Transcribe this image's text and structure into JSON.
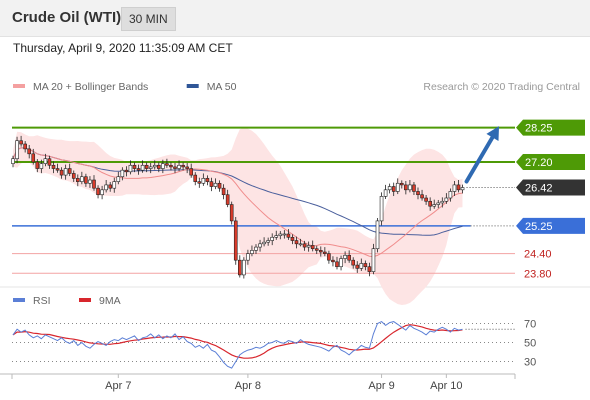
{
  "header": {
    "title": "Crude Oil (WTI)",
    "interval": "30 MIN"
  },
  "timestamp": "Thursday, April 9, 2020 11:35:09 AM CET",
  "copyright": "Research © 2020 Trading Central",
  "colors": {
    "resistance": "#4e9a06",
    "support": "#3a6fd8",
    "minor": "#f3a3a3",
    "minor_text": "#c0221f",
    "price_tag": "#333333",
    "bollinger_fill": "#fde4e4",
    "ma20": "#f08c8c",
    "ma50": "#4a5f9c",
    "candle_up": "#ffffff",
    "candle_down": "#d93b2b",
    "arrow": "#2f6ab2",
    "rsi": "#5b7fd6",
    "rsi_ma": "#d8262d"
  },
  "legends": {
    "main": [
      {
        "label": "MA 20 + Bollinger Bands",
        "color": "#f4a0a0"
      },
      {
        "label": "MA 50",
        "color": "#2f5697"
      }
    ],
    "rsi": [
      {
        "label": "RSI",
        "color": "#5b7fd6"
      },
      {
        "label": "9MA",
        "color": "#d8262d"
      }
    ]
  },
  "chart_data": {
    "type": "candlestick",
    "price_range": [
      23.35,
      28.85
    ],
    "price_labels": [
      {
        "value": 28.25,
        "label": "28.25",
        "kind": "resistance"
      },
      {
        "value": 27.2,
        "label": "27.20",
        "kind": "resistance"
      },
      {
        "value": 26.42,
        "label": "26.42",
        "kind": "last"
      },
      {
        "value": 25.25,
        "label": "25.25",
        "kind": "support"
      },
      {
        "value": 24.4,
        "label": "24.40",
        "kind": "minor"
      },
      {
        "value": 23.8,
        "label": "23.80",
        "kind": "minor"
      }
    ],
    "x_labels": [
      {
        "index": 26,
        "label": "Apr 7"
      },
      {
        "index": 58,
        "label": "Apr 8"
      },
      {
        "index": 91,
        "label": "Apr 9"
      },
      {
        "index": 107,
        "label": "Apr 10"
      }
    ],
    "bar_count": 112,
    "closes": [
      27.3,
      27.85,
      27.75,
      27.6,
      27.45,
      27.2,
      27.0,
      27.15,
      27.3,
      27.1,
      27.0,
      26.95,
      26.8,
      27.0,
      26.85,
      26.7,
      26.6,
      26.75,
      26.55,
      26.65,
      26.4,
      26.2,
      26.35,
      26.5,
      26.4,
      26.6,
      26.75,
      26.95,
      26.9,
      27.1,
      27.0,
      26.95,
      27.1,
      27.0,
      27.05,
      27.1,
      27.0,
      27.15,
      27.1,
      27.05,
      27.0,
      27.1,
      27.05,
      27.0,
      26.8,
      26.6,
      26.55,
      26.7,
      26.6,
      26.45,
      26.55,
      26.4,
      26.2,
      25.9,
      25.4,
      24.2,
      23.75,
      24.2,
      24.4,
      24.5,
      24.6,
      24.7,
      24.75,
      24.8,
      24.9,
      24.95,
      25.0,
      25.0,
      24.9,
      24.8,
      24.7,
      24.7,
      24.6,
      24.65,
      24.55,
      24.5,
      24.45,
      24.4,
      24.2,
      24.15,
      24.0,
      24.25,
      24.35,
      24.2,
      24.05,
      23.95,
      24.1,
      24.0,
      23.85,
      24.55,
      25.4,
      26.15,
      26.35,
      26.45,
      26.3,
      26.55,
      26.5,
      26.35,
      26.5,
      26.3,
      26.2,
      26.1,
      26.0,
      25.85,
      25.9,
      25.95,
      26.0,
      26.1,
      26.3,
      26.5,
      26.35,
      26.42
    ],
    "rsi_range": [
      20,
      80
    ],
    "rsi_levels": [
      {
        "value": 70,
        "label": "70"
      },
      {
        "value": 50,
        "label": "50"
      },
      {
        "value": 30,
        "label": "30"
      }
    ],
    "rsi_values": [
      58,
      64,
      61,
      63,
      58,
      55,
      57,
      54,
      58,
      56,
      54,
      52,
      55,
      51,
      49,
      52,
      47,
      50,
      46,
      44,
      48,
      51,
      49,
      47,
      51,
      53,
      52,
      55,
      53,
      55,
      57,
      52,
      55,
      56,
      59,
      55,
      58,
      54,
      57,
      55,
      59,
      53,
      56,
      51,
      49,
      45,
      47,
      44,
      48,
      42,
      40,
      35,
      29,
      25,
      23,
      30,
      37,
      40,
      42,
      43,
      45,
      44,
      46,
      49,
      50,
      52,
      50,
      49,
      52,
      51,
      49,
      53,
      50,
      48,
      47,
      46,
      45,
      43,
      41,
      45,
      47,
      42,
      40,
      37,
      41,
      43,
      47,
      45,
      44,
      59,
      70,
      72,
      68,
      71,
      72,
      69,
      66,
      63,
      68,
      65,
      63,
      61,
      58,
      62,
      61,
      64,
      66,
      64,
      61,
      65,
      63,
      64
    ],
    "arrow": {
      "from": {
        "index": 111,
        "value": 26.42
      },
      "to": {
        "index": 120,
        "value": 28.25
      }
    }
  }
}
